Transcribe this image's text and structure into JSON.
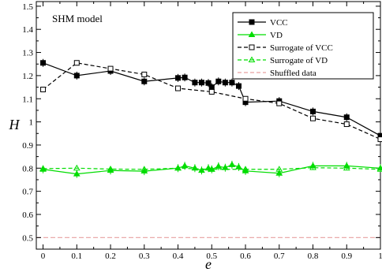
{
  "chart_data": {
    "type": "line",
    "xlabel": "e",
    "ylabel": "H",
    "annotation": "SHM model",
    "xlim": [
      -0.02,
      1.0
    ],
    "ylim": [
      0.45,
      1.52
    ],
    "x_ticks": [
      0,
      0.1,
      0.2,
      0.3,
      0.4,
      0.5,
      0.6,
      0.7,
      0.8,
      0.9,
      1
    ],
    "x_tick_labels": [
      "0",
      "0.1",
      "0.2",
      "0.3",
      "0.4",
      "0.5",
      "0.6",
      "0.7",
      "0.8",
      "0.9",
      "1"
    ],
    "y_ticks": [
      0.5,
      0.6,
      0.7,
      0.8,
      0.9,
      1.0,
      1.1,
      1.2,
      1.3,
      1.4,
      1.5
    ],
    "y_tick_labels": [
      "0.5",
      "0.6",
      "0.7",
      "0.8",
      "0.9",
      "1",
      "1.1",
      "1.2",
      "1.3",
      "1.4",
      "1.5"
    ],
    "grid": false,
    "legend_position": "top-right",
    "series": [
      {
        "name": "VCC",
        "color": "#000000",
        "line": "solid",
        "marker": "filled-square",
        "x": [
          0,
          0.1,
          0.2,
          0.3,
          0.4,
          0.42,
          0.45,
          0.47,
          0.49,
          0.5,
          0.52,
          0.54,
          0.56,
          0.58,
          0.6,
          0.7,
          0.8,
          0.9,
          1
        ],
        "y": [
          1.255,
          1.2,
          1.22,
          1.175,
          1.19,
          1.192,
          1.17,
          1.17,
          1.168,
          1.15,
          1.175,
          1.17,
          1.17,
          1.155,
          1.085,
          1.09,
          1.045,
          1.02,
          0.94
        ]
      },
      {
        "name": "VD",
        "color": "#00dd00",
        "line": "solid",
        "marker": "filled-triangle",
        "x": [
          0,
          0.1,
          0.2,
          0.3,
          0.4,
          0.42,
          0.45,
          0.47,
          0.49,
          0.5,
          0.52,
          0.54,
          0.56,
          0.58,
          0.6,
          0.7,
          0.8,
          0.9,
          1
        ],
        "y": [
          0.795,
          0.775,
          0.79,
          0.787,
          0.8,
          0.81,
          0.8,
          0.79,
          0.8,
          0.795,
          0.808,
          0.802,
          0.815,
          0.805,
          0.788,
          0.778,
          0.81,
          0.81,
          0.8
        ]
      },
      {
        "name": "Surrogate of VCC",
        "color": "#000000",
        "line": "dashed",
        "marker": "open-square",
        "x": [
          0,
          0.1,
          0.2,
          0.3,
          0.4,
          0.5,
          0.6,
          0.7,
          0.8,
          0.9,
          1
        ],
        "y": [
          1.14,
          1.255,
          1.23,
          1.205,
          1.145,
          1.13,
          1.1,
          1.08,
          1.015,
          0.99,
          0.925
        ]
      },
      {
        "name": "Surrogate of VD",
        "color": "#00dd00",
        "line": "dashed",
        "marker": "open-triangle",
        "x": [
          0,
          0.1,
          0.2,
          0.3,
          0.4,
          0.5,
          0.6,
          0.7,
          0.8,
          0.9,
          1
        ],
        "y": [
          0.798,
          0.8,
          0.796,
          0.795,
          0.8,
          0.795,
          0.795,
          0.795,
          0.802,
          0.8,
          0.795
        ]
      },
      {
        "name": "Shuffled data",
        "color": "#e8a0a0",
        "line": "dashed",
        "marker": "none",
        "x": [
          -0.02,
          1.0
        ],
        "y": [
          0.5,
          0.5
        ]
      }
    ]
  }
}
